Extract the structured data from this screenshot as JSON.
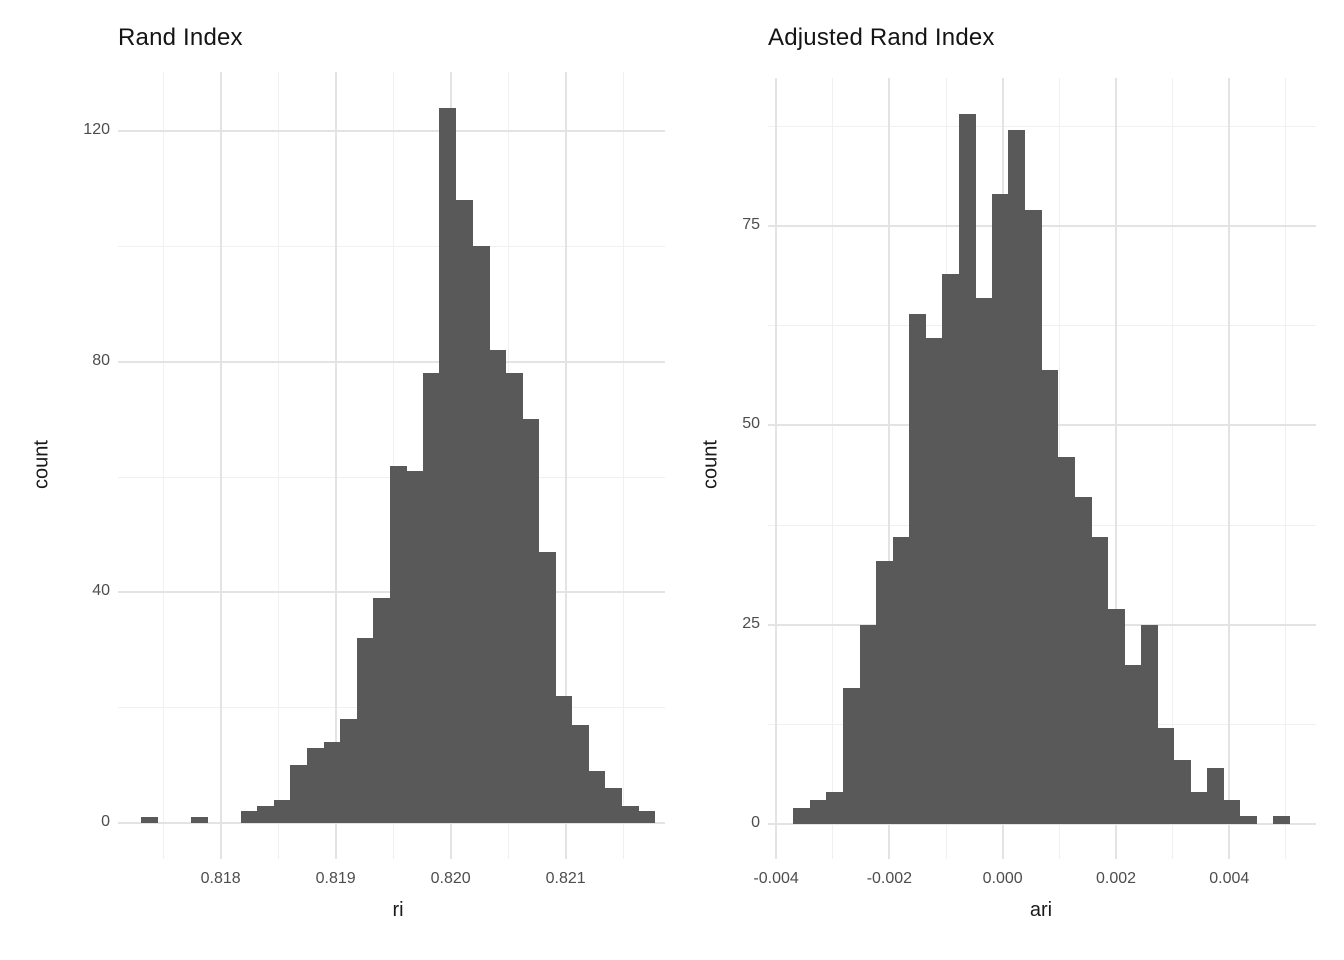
{
  "page": {
    "background": "#FFFFFF"
  },
  "colors": {
    "bar_fill": "#595959",
    "grid_major": "#E3E3E3",
    "grid_minor": "#F0F0F0",
    "tick_label_text": "#4D4D4D",
    "title_text": "#141414"
  },
  "chart_data": [
    {
      "type": "bar",
      "subtype": "histogram",
      "title": "Rand Index",
      "xlabel": "ri",
      "ylabel": "count",
      "bar_color": "#595959",
      "grid": true,
      "legend": "none",
      "x_ticks": [
        0.818,
        0.819,
        0.82,
        0.821
      ],
      "x_tick_labels": [
        "0.818",
        "0.819",
        "0.820",
        "0.821"
      ],
      "x_minor_ticks": [
        0.8175,
        0.8185,
        0.8195,
        0.8205,
        0.8215
      ],
      "y_ticks": [
        0,
        40,
        80,
        120
      ],
      "y_tick_labels": [
        "0",
        "40",
        "80",
        "120"
      ],
      "y_minor_ticks": [
        20,
        60,
        100
      ],
      "xlim": [
        0.81706,
        0.82201
      ],
      "ylim": [
        0,
        130
      ],
      "bin_start": 0.81731,
      "bin_width": 0.000144,
      "counts": [
        1,
        0,
        0,
        1,
        0,
        0,
        2,
        3,
        4,
        10,
        13,
        14,
        18,
        32,
        39,
        62,
        61,
        78,
        124,
        108,
        100,
        82,
        78,
        70,
        47,
        22,
        17,
        9,
        6,
        3,
        2
      ]
    },
    {
      "type": "bar",
      "subtype": "histogram",
      "title": "Adjusted Rand Index",
      "xlabel": "ari",
      "ylabel": "count",
      "bar_color": "#595959",
      "grid": true,
      "legend": "none",
      "x_ticks": [
        -0.004,
        -0.002,
        0.0,
        0.002,
        0.004
      ],
      "x_tick_labels": [
        "-0.004",
        "-0.002",
        "0.000",
        "0.002",
        "0.004"
      ],
      "x_minor_ticks": [
        -0.003,
        -0.001,
        0.001,
        0.003,
        0.005
      ],
      "y_ticks": [
        0,
        25,
        50,
        75
      ],
      "y_tick_labels": [
        "0",
        "25",
        "50",
        "75"
      ],
      "y_minor_ticks": [
        12.5,
        37.5,
        62.5,
        87.5
      ],
      "xlim": [
        -0.00413,
        0.00551
      ],
      "ylim": [
        0,
        93.5
      ],
      "bin_start": -0.003695,
      "bin_width": 0.000292,
      "counts": [
        2,
        3,
        4,
        17,
        25,
        33,
        36,
        64,
        61,
        69,
        89,
        66,
        79,
        87,
        77,
        57,
        46,
        41,
        36,
        27,
        20,
        25,
        12,
        8,
        4,
        7,
        3,
        1,
        0,
        1
      ]
    }
  ]
}
